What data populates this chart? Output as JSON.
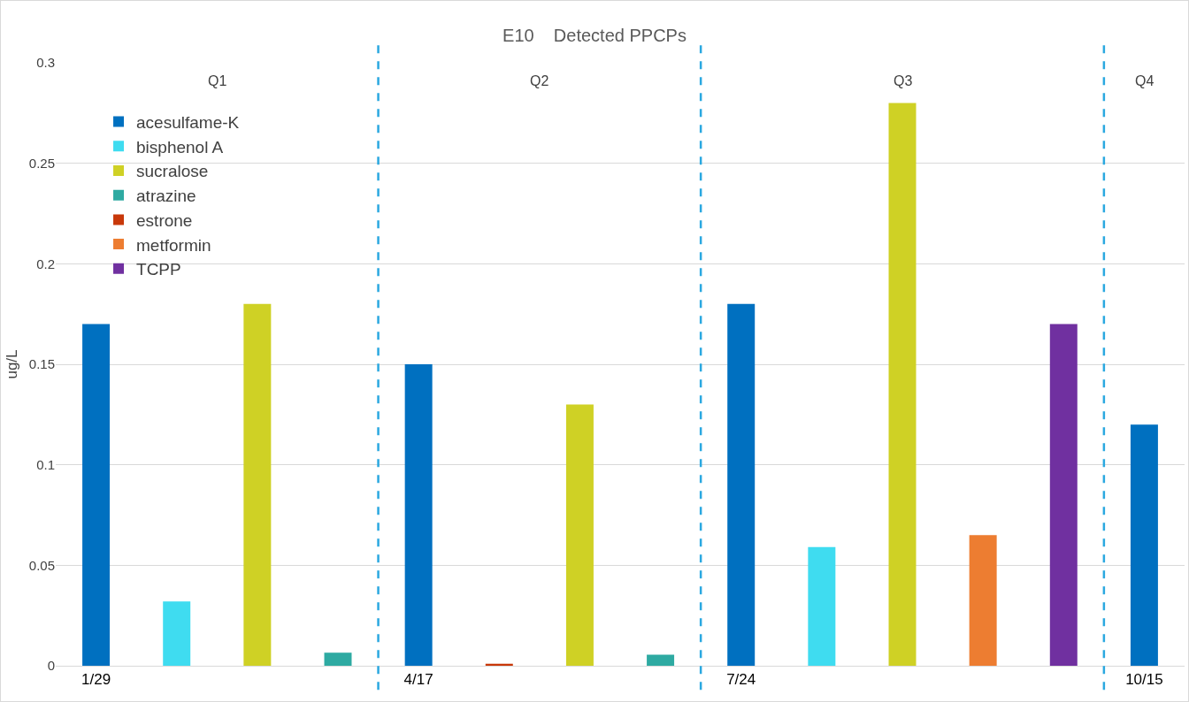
{
  "chart_data": {
    "type": "bar",
    "title": "E10    Detected PPCPs",
    "ylabel": "ug/L",
    "categories": [
      "1/29",
      null,
      null,
      null,
      "4/17",
      null,
      null,
      null,
      "7/24",
      null,
      null,
      null,
      null,
      "10/15"
    ],
    "annotations": [
      "Q1",
      "Q2",
      "Q3",
      "Q4"
    ],
    "series": [
      {
        "name": "acesulfame-K",
        "color": "#0070c0",
        "values": [
          0.17,
          null,
          null,
          null,
          0.15,
          null,
          null,
          null,
          0.18,
          null,
          null,
          null,
          null,
          0.12
        ]
      },
      {
        "name": "bisphenol A",
        "color": "#3fdcf0",
        "values": [
          null,
          0.032,
          null,
          null,
          null,
          null,
          null,
          null,
          null,
          0.059,
          null,
          null,
          null,
          null
        ]
      },
      {
        "name": "sucralose",
        "color": "#cfd125",
        "values": [
          null,
          null,
          0.18,
          null,
          null,
          null,
          0.13,
          null,
          null,
          null,
          0.28,
          null,
          null,
          null
        ]
      },
      {
        "name": "atrazine",
        "color": "#2eaaa2",
        "values": [
          null,
          null,
          null,
          0.0065,
          null,
          null,
          null,
          0.0055,
          null,
          null,
          null,
          null,
          null,
          null
        ]
      },
      {
        "name": "estrone",
        "color": "#c8380a",
        "values": [
          null,
          null,
          null,
          null,
          null,
          0.001,
          null,
          null,
          null,
          null,
          null,
          null,
          null,
          null
        ]
      },
      {
        "name": "metformin",
        "color": "#ed7d31",
        "values": [
          null,
          null,
          null,
          null,
          null,
          null,
          null,
          null,
          null,
          null,
          null,
          0.065,
          null,
          null
        ]
      },
      {
        "name": "TCPP",
        "color": "#7030a0",
        "values": [
          null,
          null,
          null,
          null,
          null,
          null,
          null,
          null,
          null,
          null,
          null,
          null,
          0.17,
          null
        ]
      }
    ],
    "ylim": [
      0,
      0.3
    ],
    "yticks": [
      0,
      0.05,
      0.1,
      0.15,
      0.2,
      0.25,
      0.3
    ],
    "grid": "y",
    "legend": "top left"
  }
}
